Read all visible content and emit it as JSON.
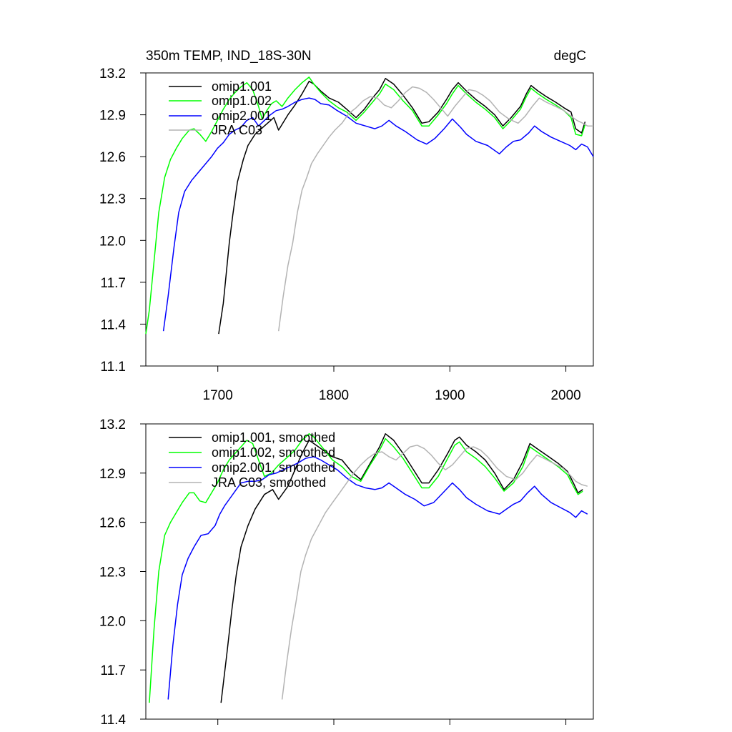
{
  "chart_data": [
    {
      "type": "line",
      "title": "350m TEMP, IND_18S-30N",
      "units": "degC",
      "xlim": [
        1639,
        2020
      ],
      "ylim": [
        11.1,
        13.2
      ],
      "xticks": [
        1700,
        1800,
        1900,
        2000
      ],
      "xtick_labels": [
        "1700",
        "1800",
        "1900",
        "2000"
      ],
      "yticks": [
        11.1,
        11.4,
        11.7,
        12.0,
        12.3,
        12.6,
        12.9,
        13.2
      ],
      "ytick_labels": [
        "11.1",
        "11.4",
        "11.7",
        "12.0",
        "12.3",
        "12.6",
        "12.9",
        "13.2"
      ],
      "legend_position": "top-left",
      "series": [
        {
          "name": "omip1.001",
          "color": "#000000",
          "x": [
            1701,
            1705,
            1710,
            1713,
            1717,
            1722,
            1726,
            1732,
            1740,
            1748,
            1752,
            1760,
            1766,
            1772,
            1778,
            1782,
            1788,
            1795,
            1803,
            1810,
            1818,
            1825,
            1832,
            1838,
            1843,
            1850,
            1858,
            1866,
            1874,
            1880,
            1888,
            1895,
            1900,
            1905,
            1912,
            1920,
            1928,
            1936,
            1943,
            1950,
            1958,
            1963,
            1967,
            1973,
            1980,
            1988,
            1995,
            2001,
            2005,
            2010,
            2013
          ],
          "y": [
            11.33,
            11.55,
            11.98,
            12.18,
            12.42,
            12.58,
            12.68,
            12.76,
            12.82,
            12.88,
            12.79,
            12.9,
            12.97,
            13.05,
            13.14,
            13.12,
            13.07,
            13.02,
            12.99,
            12.94,
            12.88,
            12.94,
            13.02,
            13.08,
            13.16,
            13.12,
            13.04,
            12.95,
            12.84,
            12.85,
            12.92,
            13.01,
            13.08,
            13.13,
            13.07,
            13.01,
            12.96,
            12.9,
            12.82,
            12.88,
            12.96,
            13.05,
            13.11,
            13.07,
            13.03,
            12.99,
            12.95,
            12.92,
            12.8,
            12.77,
            12.85
          ]
        },
        {
          "name": "omip1.002",
          "color": "#00ff00",
          "x": [
            1639,
            1642,
            1646,
            1650,
            1655,
            1660,
            1665,
            1670,
            1676,
            1680,
            1685,
            1690,
            1695,
            1700,
            1705,
            1710,
            1715,
            1720,
            1725,
            1730,
            1735,
            1738,
            1742,
            1746,
            1750,
            1755,
            1760,
            1766,
            1772,
            1778,
            1782,
            1788,
            1795,
            1803,
            1810,
            1818,
            1825,
            1832,
            1838,
            1843,
            1850,
            1858,
            1866,
            1874,
            1880,
            1888,
            1895,
            1900,
            1905,
            1912,
            1920,
            1928,
            1936,
            1943,
            1950,
            1958,
            1963,
            1967,
            1973,
            1980,
            1988,
            1995,
            2001,
            2005,
            2010,
            2013
          ],
          "y": [
            11.33,
            11.5,
            11.85,
            12.2,
            12.45,
            12.58,
            12.66,
            12.73,
            12.79,
            12.8,
            12.76,
            12.71,
            12.78,
            12.86,
            12.94,
            13.01,
            13.06,
            13.1,
            13.13,
            13.08,
            12.96,
            12.87,
            12.93,
            12.98,
            13.0,
            12.96,
            13.02,
            13.08,
            13.13,
            13.17,
            13.12,
            13.06,
            13.0,
            12.95,
            12.92,
            12.86,
            12.92,
            12.99,
            13.05,
            13.12,
            13.08,
            13.0,
            12.93,
            12.82,
            12.82,
            12.9,
            12.98,
            13.05,
            13.11,
            13.05,
            12.99,
            12.94,
            12.88,
            12.8,
            12.86,
            12.94,
            13.03,
            13.09,
            13.05,
            13.01,
            12.97,
            12.93,
            12.88,
            12.76,
            12.75,
            12.83
          ]
        },
        {
          "name": "omip2.001",
          "color": "#0000ff",
          "x": [
            1654,
            1658,
            1663,
            1667,
            1672,
            1678,
            1684,
            1690,
            1695,
            1700,
            1705,
            1710,
            1715,
            1720,
            1725,
            1730,
            1735,
            1740,
            1745,
            1750,
            1755,
            1760,
            1766,
            1772,
            1778,
            1783,
            1788,
            1795,
            1802,
            1810,
            1818,
            1826,
            1834,
            1840,
            1846,
            1852,
            1860,
            1870,
            1878,
            1885,
            1893,
            1900,
            1907,
            1912,
            1920,
            1930,
            1940,
            1946,
            1952,
            1958,
            1965,
            1970,
            1976,
            1984,
            1992,
            2000,
            2005,
            2010,
            2015,
            2020
          ],
          "y": [
            11.35,
            11.6,
            11.95,
            12.2,
            12.35,
            12.43,
            12.49,
            12.55,
            12.6,
            12.66,
            12.7,
            12.76,
            12.79,
            12.81,
            12.86,
            12.88,
            12.82,
            12.86,
            12.9,
            12.93,
            12.94,
            12.96,
            12.99,
            13.01,
            13.02,
            13.01,
            12.98,
            12.97,
            12.93,
            12.89,
            12.84,
            12.82,
            12.8,
            12.82,
            12.86,
            12.82,
            12.78,
            12.72,
            12.69,
            12.73,
            12.8,
            12.87,
            12.81,
            12.76,
            12.71,
            12.68,
            12.62,
            12.67,
            12.71,
            12.72,
            12.77,
            12.82,
            12.78,
            12.74,
            12.71,
            12.68,
            12.65,
            12.69,
            12.67,
            12.6
          ]
        },
        {
          "name": "JRA C03",
          "color": "#b3b3b3",
          "x": [
            1752,
            1756,
            1760,
            1764,
            1768,
            1772,
            1776,
            1780,
            1785,
            1790,
            1795,
            1800,
            1806,
            1812,
            1818,
            1824,
            1830,
            1836,
            1842,
            1848,
            1854,
            1860,
            1866,
            1872,
            1878,
            1884,
            1890,
            1896,
            1902,
            1908,
            1914,
            1920,
            1926,
            1932,
            1940,
            1948,
            1956,
            1962,
            1968,
            1974,
            1980,
            1988,
            1995,
            2001,
            2006,
            2011,
            2015,
            2020
          ],
          "y": [
            11.35,
            11.6,
            11.82,
            11.98,
            12.2,
            12.36,
            12.45,
            12.55,
            12.62,
            12.68,
            12.74,
            12.79,
            12.84,
            12.91,
            12.95,
            13.0,
            13.03,
            13.02,
            12.97,
            12.95,
            13.0,
            13.06,
            13.1,
            13.09,
            13.06,
            13.01,
            12.95,
            12.89,
            12.96,
            13.02,
            13.08,
            13.07,
            13.04,
            13.0,
            12.92,
            12.87,
            12.84,
            12.89,
            12.96,
            13.02,
            12.99,
            12.96,
            12.93,
            12.89,
            12.86,
            12.84,
            12.82,
            12.82
          ]
        }
      ]
    },
    {
      "type": "line",
      "title": "",
      "xlim": [
        1639,
        2020
      ],
      "ylim": [
        11.4,
        13.2
      ],
      "yticks": [
        11.4,
        11.7,
        12.0,
        12.3,
        12.6,
        12.9,
        13.2
      ],
      "ytick_labels": [
        "11.4",
        "11.7",
        "12.0",
        "12.3",
        "12.6",
        "12.9",
        "13.2"
      ],
      "xticks": [
        1700,
        1800,
        1900,
        2000
      ],
      "legend_position": "top-left",
      "series": [
        {
          "name": "omip1.001, smoothed",
          "color": "#000000",
          "x": [
            1703,
            1708,
            1712,
            1716,
            1720,
            1726,
            1732,
            1740,
            1747,
            1752,
            1760,
            1766,
            1772,
            1778,
            1782,
            1790,
            1798,
            1806,
            1814,
            1822,
            1830,
            1838,
            1843,
            1850,
            1858,
            1866,
            1874,
            1880,
            1888,
            1896,
            1902,
            1906,
            1912,
            1920,
            1928,
            1936,
            1944,
            1952,
            1960,
            1966,
            1974,
            1982,
            1990,
            1998,
            2003,
            2007,
            2011
          ],
          "y": [
            11.5,
            11.8,
            12.05,
            12.28,
            12.45,
            12.58,
            12.68,
            12.77,
            12.8,
            12.74,
            12.82,
            12.92,
            13.02,
            13.1,
            13.08,
            13.04,
            13.0,
            12.98,
            12.91,
            12.86,
            12.96,
            13.06,
            13.14,
            13.1,
            13.02,
            12.93,
            12.84,
            12.84,
            12.92,
            13.02,
            13.1,
            13.12,
            13.07,
            13.03,
            12.98,
            12.9,
            12.8,
            12.86,
            12.97,
            13.08,
            13.04,
            13.0,
            12.96,
            12.91,
            12.84,
            12.78,
            12.8
          ]
        },
        {
          "name": "omip1.002, smoothed",
          "color": "#00ff00",
          "x": [
            1642,
            1646,
            1650,
            1655,
            1660,
            1665,
            1670,
            1676,
            1680,
            1685,
            1690,
            1695,
            1700,
            1705,
            1710,
            1715,
            1720,
            1725,
            1730,
            1735,
            1740,
            1746,
            1752,
            1760,
            1766,
            1772,
            1778,
            1782,
            1790,
            1798,
            1806,
            1814,
            1822,
            1830,
            1838,
            1843,
            1850,
            1858,
            1866,
            1874,
            1880,
            1888,
            1896,
            1902,
            1906,
            1912,
            1920,
            1928,
            1936,
            1944,
            1952,
            1960,
            1966,
            1974,
            1982,
            1990,
            1998,
            2003,
            2007,
            2011
          ],
          "y": [
            11.5,
            11.95,
            12.3,
            12.52,
            12.6,
            12.66,
            12.72,
            12.78,
            12.78,
            12.73,
            12.72,
            12.78,
            12.84,
            12.92,
            12.98,
            13.02,
            13.06,
            13.1,
            13.08,
            12.98,
            12.88,
            12.9,
            12.95,
            13.0,
            13.04,
            13.1,
            13.14,
            13.12,
            13.05,
            12.98,
            12.94,
            12.88,
            12.85,
            12.95,
            13.04,
            13.11,
            13.06,
            12.99,
            12.9,
            12.81,
            12.81,
            12.88,
            12.99,
            13.07,
            13.09,
            13.03,
            12.99,
            12.94,
            12.87,
            12.79,
            12.84,
            12.94,
            13.06,
            13.02,
            12.98,
            12.94,
            12.89,
            12.82,
            12.77,
            12.79
          ]
        },
        {
          "name": "omip2.001, smoothed",
          "color": "#0000ff",
          "x": [
            1658,
            1662,
            1666,
            1670,
            1675,
            1680,
            1686,
            1692,
            1698,
            1702,
            1706,
            1710,
            1715,
            1720,
            1726,
            1732,
            1738,
            1744,
            1750,
            1756,
            1762,
            1768,
            1775,
            1782,
            1788,
            1795,
            1802,
            1810,
            1818,
            1826,
            1834,
            1840,
            1846,
            1852,
            1860,
            1868,
            1876,
            1884,
            1892,
            1900,
            1906,
            1912,
            1920,
            1930,
            1940,
            1946,
            1952,
            1958,
            1964,
            1970,
            1976,
            1984,
            1992,
            2000,
            2005,
            2010,
            2015
          ],
          "y": [
            11.52,
            11.85,
            12.1,
            12.28,
            12.38,
            12.45,
            12.52,
            12.53,
            12.58,
            12.65,
            12.7,
            12.74,
            12.79,
            12.84,
            12.85,
            12.85,
            12.86,
            12.89,
            12.9,
            12.92,
            12.94,
            12.96,
            12.99,
            13.0,
            12.98,
            12.95,
            12.92,
            12.87,
            12.83,
            12.81,
            12.8,
            12.81,
            12.84,
            12.81,
            12.77,
            12.74,
            12.7,
            12.72,
            12.78,
            12.84,
            12.8,
            12.75,
            12.71,
            12.67,
            12.65,
            12.68,
            12.71,
            12.73,
            12.78,
            12.82,
            12.77,
            12.72,
            12.69,
            12.66,
            12.63,
            12.67,
            12.65
          ]
        },
        {
          "name": "JRA C03, smoothed",
          "color": "#b3b3b3",
          "x": [
            1755,
            1759,
            1763,
            1767,
            1771,
            1775,
            1780,
            1786,
            1792,
            1798,
            1804,
            1810,
            1816,
            1822,
            1828,
            1834,
            1840,
            1846,
            1852,
            1858,
            1864,
            1870,
            1876,
            1882,
            1888,
            1894,
            1900,
            1906,
            1912,
            1918,
            1924,
            1930,
            1938,
            1946,
            1954,
            1960,
            1966,
            1972,
            1978,
            1986,
            1994,
            2000,
            2005,
            2010,
            2015
          ],
          "y": [
            11.52,
            11.75,
            11.95,
            12.12,
            12.3,
            12.4,
            12.5,
            12.58,
            12.66,
            12.72,
            12.78,
            12.84,
            12.9,
            12.95,
            12.99,
            13.02,
            13.03,
            13.0,
            12.98,
            13.02,
            13.06,
            13.07,
            13.05,
            13.01,
            12.96,
            12.92,
            12.95,
            13.0,
            13.05,
            13.06,
            13.04,
            13.0,
            12.93,
            12.88,
            12.86,
            12.9,
            12.96,
            13.01,
            12.99,
            12.96,
            12.93,
            12.89,
            12.85,
            12.83,
            12.82
          ]
        }
      ]
    }
  ]
}
